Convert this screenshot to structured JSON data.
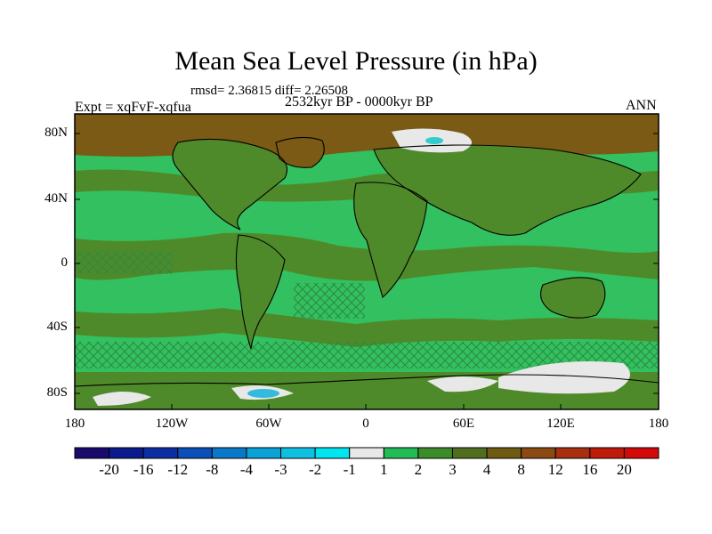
{
  "title": "Mean Sea Level Pressure (in hPa)",
  "stats": "rmsd= 2.36815 diff= 2.26508",
  "experiment": "Expt = xqFvF-xqfua",
  "period": "2532kyr BP - 0000kyr BP",
  "season": "ANN",
  "y_labels": [
    "80N",
    "40N",
    "0",
    "40S",
    "80S"
  ],
  "x_labels": [
    "180",
    "120W",
    "60W",
    "0",
    "60E",
    "120E",
    "180"
  ],
  "colorbar": {
    "labels": [
      "-20",
      "-16",
      "-12",
      "-8",
      "-4",
      "-3",
      "-2",
      "-1",
      "1",
      "2",
      "3",
      "4",
      "8",
      "12",
      "16",
      "20"
    ],
    "colors": [
      "#1a0a6e",
      "#0b1a8c",
      "#0b2fa3",
      "#0a4fb8",
      "#0a78c8",
      "#0aa0d8",
      "#10c0e0",
      "#00e5f0",
      "#e8e8e8",
      "#22bb55",
      "#3d8c2a",
      "#4f6e1f",
      "#6e5a10",
      "#8a4a12",
      "#a83010",
      "#c01a0a",
      "#d40a0a"
    ]
  },
  "map_colors": {
    "ocean_green": "#33c060",
    "land_green": "#4f8a2a",
    "brown": "#7a5a14",
    "white": "#e8e8e8",
    "cyan": "#33cccc"
  }
}
